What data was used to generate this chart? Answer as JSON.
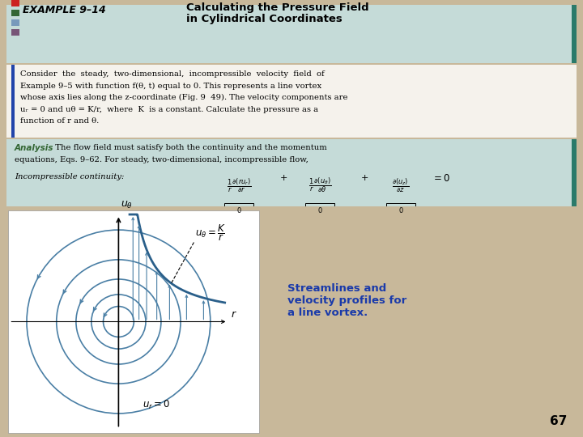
{
  "background_color": "#c8b89a",
  "teal_bg": "#c5dbd8",
  "white_bg": "#f0f0ec",
  "title_example": "EXAMPLE 9–14",
  "title_main": "Calculating the Pressure Field",
  "title_sub": "in Cylindrical Coordinates",
  "body_lines": [
    "Consider  the  steady,  two-dimensional,  incompressible  velocity  field  of",
    "Example 9–5 with function f(θ, t) equal to 0. This represents a line vortex",
    "whose axis lies along the z-coordinate (Fig. 9  49). The velocity components are",
    "uᵣ = 0 and uθ = K/r,  where  K  is a constant. Calculate the pressure as a",
    "function of r and θ."
  ],
  "analysis_label": "Analysis",
  "analysis_line1": "  The flow field must satisfy both the continuity and the momentum",
  "analysis_line2": "equations, Eqs. 9–62. For steady, two-dimensional, incompressible flow,",
  "incompressible_label": "Incompressible continuity:",
  "streamline_color": "#4a7fa5",
  "velocity_curve_color": "#2a5f8a",
  "caption_text": "Streamlines and\nvelocity profiles for\na line vortex.",
  "caption_color": "#1a3aaa",
  "page_number": "67",
  "sq_red": "#cc2222",
  "sq_green": "#336633",
  "sq_blue_light": "#7799bb",
  "sq_purple": "#775577",
  "sq_blue_dark": "#2244aa",
  "circle_radii": [
    0.18,
    0.32,
    0.5,
    0.73,
    1.08
  ],
  "K": 0.28,
  "dark_teal_bar": "#2a7a6a"
}
